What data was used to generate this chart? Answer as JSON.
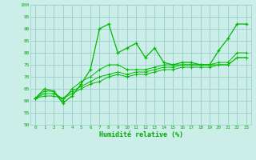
{
  "background_color": "#cceee8",
  "grid_color": "#99cccc",
  "line_color": "#00bb00",
  "marker_color": "#00bb00",
  "xlabel": "Humidité relative (%)",
  "xlabel_color": "#00aa00",
  "ylabel_color": "#00aa00",
  "ylim": [
    50,
    100
  ],
  "xlim": [
    -0.5,
    23.5
  ],
  "yticks": [
    50,
    55,
    60,
    65,
    70,
    75,
    80,
    85,
    90,
    95,
    100
  ],
  "xticks": [
    0,
    1,
    2,
    3,
    4,
    5,
    6,
    7,
    8,
    9,
    10,
    11,
    12,
    13,
    14,
    15,
    16,
    17,
    18,
    19,
    20,
    21,
    22,
    23
  ],
  "series": [
    [
      61,
      65,
      64,
      59,
      62,
      67,
      73,
      90,
      92,
      80,
      82,
      84,
      78,
      82,
      76,
      75,
      76,
      76,
      75,
      75,
      81,
      86,
      92,
      92
    ],
    [
      61,
      64,
      64,
      60,
      65,
      68,
      70,
      73,
      75,
      75,
      73,
      73,
      73,
      74,
      75,
      75,
      75,
      75,
      75,
      75,
      76,
      76,
      80,
      80
    ],
    [
      61,
      63,
      63,
      61,
      64,
      66,
      68,
      70,
      71,
      72,
      71,
      72,
      72,
      73,
      74,
      74,
      75,
      75,
      75,
      75,
      75,
      75,
      78,
      78
    ],
    [
      61,
      62,
      62,
      61,
      63,
      65,
      67,
      68,
      70,
      71,
      70,
      71,
      71,
      72,
      73,
      73,
      74,
      74,
      74,
      74,
      75,
      75,
      78,
      78
    ]
  ]
}
